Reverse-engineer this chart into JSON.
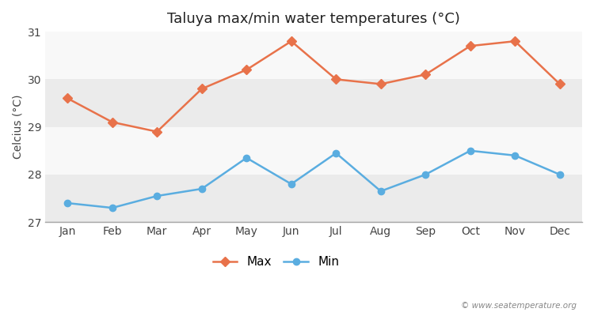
{
  "title": "Taluya max/min water temperatures (°C)",
  "ylabel": "Celcius (°C)",
  "months": [
    "Jan",
    "Feb",
    "Mar",
    "Apr",
    "May",
    "Jun",
    "Jul",
    "Aug",
    "Sep",
    "Oct",
    "Nov",
    "Dec"
  ],
  "max_temps": [
    29.6,
    29.1,
    28.9,
    29.8,
    30.2,
    30.8,
    30.0,
    29.9,
    30.1,
    30.7,
    30.8,
    29.9
  ],
  "min_temps": [
    27.4,
    27.3,
    27.55,
    27.7,
    28.35,
    27.8,
    28.45,
    27.65,
    28.0,
    28.5,
    28.4,
    28.0
  ],
  "max_color": "#e8724a",
  "min_color": "#5aade0",
  "ylim": [
    27,
    31
  ],
  "yticks": [
    27,
    28,
    29,
    30,
    31
  ],
  "bg_color_light": "#f0f0f0",
  "bg_color_white": "#ffffff",
  "stripe_even": "#ebebeb",
  "stripe_odd": "#f8f8f8",
  "watermark": "© www.seatemperature.org"
}
